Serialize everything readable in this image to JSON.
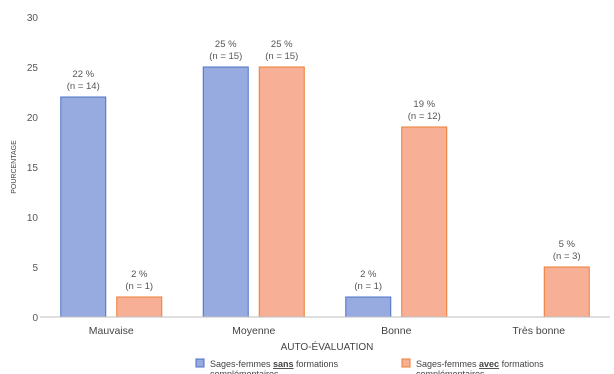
{
  "chart_data": {
    "type": "bar",
    "title": "",
    "xlabel": "AUTO-ÉVALUATION",
    "ylabel": "POURCENTAGE",
    "ylim": [
      0,
      30
    ],
    "yticks": [
      0,
      5,
      10,
      15,
      20,
      25,
      30
    ],
    "grid": false,
    "legend_position": "bottom",
    "categories": [
      "Mauvaise",
      "Moyenne",
      "Bonne",
      "Très bonne"
    ],
    "series": [
      {
        "name_parts": [
          "Sages-femmes ",
          "sans",
          " formations"
        ],
        "name_line2": "complémentaires",
        "values": [
          22,
          25,
          2,
          null
        ],
        "labels_pct": [
          "22 %",
          "25 %",
          "2 %",
          ""
        ],
        "labels_n": [
          "(n = 14)",
          "(n = 15)",
          "(n = 1)",
          ""
        ],
        "color": "#98ABE0",
        "stroke": "#4A72C4"
      },
      {
        "name_parts": [
          "Sages-femmes ",
          "avec",
          " formations"
        ],
        "name_line2": "complémentaires",
        "values": [
          2,
          25,
          19,
          5
        ],
        "labels_pct": [
          "2 %",
          "25 %",
          "19 %",
          "5 %"
        ],
        "labels_n": [
          "(n = 1)",
          "(n = 15)",
          "(n = 12)",
          "(n = 3)"
        ],
        "color": "#F7B096",
        "stroke": "#ED7D31"
      }
    ]
  }
}
